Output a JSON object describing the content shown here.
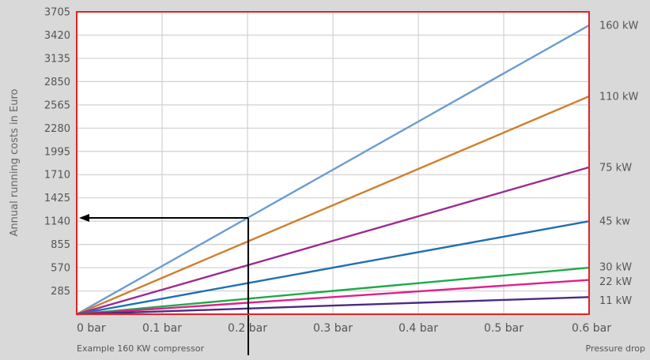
{
  "chart_data": {
    "type": "line",
    "ylabel": "Annual running costs in Euro",
    "xlabel": "Pressure drop",
    "x_ticks": [
      "0 bar",
      "0.1 bar",
      "0.2 bar",
      "0.3 bar",
      "0.4 bar",
      "0.5 bar",
      "0.6 bar"
    ],
    "x_values": [
      0,
      0.1,
      0.2,
      0.3,
      0.4,
      0.5,
      0.6
    ],
    "xlim": [
      0,
      0.6
    ],
    "y_ticks": [
      "285",
      "570",
      "855",
      "1140",
      "1425",
      "1710",
      "1995",
      "2280",
      "2565",
      "2850",
      "3135",
      "3420",
      "3705"
    ],
    "ylim": [
      0,
      3705
    ],
    "grid": true,
    "series": [
      {
        "name": "160 kW",
        "color": "#6b9bd2",
        "values": [
          0,
          590,
          1180,
          1770,
          2360,
          2950,
          3540
        ]
      },
      {
        "name": "110 kW",
        "color": "#d07f2e",
        "values": [
          0,
          445,
          890,
          1335,
          1780,
          2225,
          2670
        ]
      },
      {
        "name": "75 kW",
        "color": "#9b2b8f",
        "values": [
          0,
          300,
          600,
          900,
          1200,
          1500,
          1800
        ]
      },
      {
        "name": "45 kw",
        "color": "#1f6fb5",
        "values": [
          0,
          190,
          380,
          570,
          760,
          950,
          1140
        ]
      },
      {
        "name": "30 kW",
        "color": "#1faa4a",
        "values": [
          0,
          95,
          190,
          285,
          380,
          475,
          570
        ]
      },
      {
        "name": "22 kW",
        "color": "#e0208a",
        "values": [
          0,
          70,
          140,
          210,
          280,
          350,
          420
        ]
      },
      {
        "name": "11 kW",
        "color": "#4b2a85",
        "values": [
          0,
          35,
          70,
          105,
          140,
          175,
          210
        ]
      }
    ],
    "annotation": {
      "text": "Example 160 KW compressor",
      "x": 0.2,
      "y": 1180,
      "arrow_to_y_axis_value": 1180
    },
    "frame_color": "#e32227"
  }
}
